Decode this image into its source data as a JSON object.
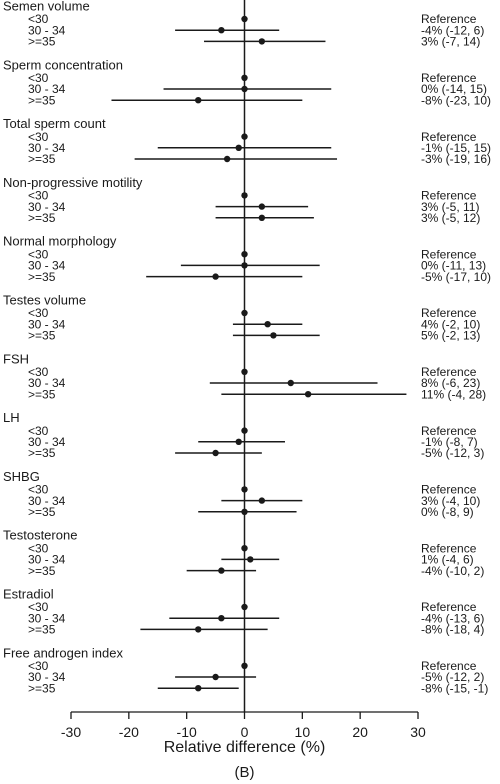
{
  "chart_data": {
    "type": "forest",
    "panel_label": "(B)",
    "xlabel": "Relative difference (%)",
    "xlim": [
      -30,
      30
    ],
    "xticks": [
      "-30",
      "-20",
      "-10",
      "0",
      "10",
      "20",
      "30"
    ],
    "groups": [
      {
        "title": "Semen volume",
        "rows": [
          {
            "label": "<30",
            "est": 0,
            "lo": null,
            "hi": null,
            "text": "Reference"
          },
          {
            "label": "30 - 34",
            "est": -4,
            "lo": -12,
            "hi": 6,
            "text": "-4% (-12, 6)"
          },
          {
            "label": ">=35",
            "est": 3,
            "lo": -7,
            "hi": 14,
            "text": "3% (-7, 14)"
          }
        ]
      },
      {
        "title": "Sperm concentration",
        "rows": [
          {
            "label": "<30",
            "est": 0,
            "lo": null,
            "hi": null,
            "text": "Reference"
          },
          {
            "label": "30 - 34",
            "est": 0,
            "lo": -14,
            "hi": 15,
            "text": "0% (-14, 15)"
          },
          {
            "label": ">=35",
            "est": -8,
            "lo": -23,
            "hi": 10,
            "text": "-8% (-23, 10)"
          }
        ]
      },
      {
        "title": "Total sperm count",
        "rows": [
          {
            "label": "<30",
            "est": 0,
            "lo": null,
            "hi": null,
            "text": "Reference"
          },
          {
            "label": "30 - 34",
            "est": -1,
            "lo": -15,
            "hi": 15,
            "text": "-1% (-15, 15)"
          },
          {
            "label": ">=35",
            "est": -3,
            "lo": -19,
            "hi": 16,
            "text": "-3% (-19, 16)"
          }
        ]
      },
      {
        "title": "Non-progressive motility",
        "rows": [
          {
            "label": "<30",
            "est": 0,
            "lo": null,
            "hi": null,
            "text": "Reference"
          },
          {
            "label": "30 - 34",
            "est": 3,
            "lo": -5,
            "hi": 11,
            "text": "3% (-5, 11)"
          },
          {
            "label": ">=35",
            "est": 3,
            "lo": -5,
            "hi": 12,
            "text": "3% (-5, 12)"
          }
        ]
      },
      {
        "title": "Normal morphology",
        "rows": [
          {
            "label": "<30",
            "est": 0,
            "lo": null,
            "hi": null,
            "text": "Reference"
          },
          {
            "label": "30 - 34",
            "est": 0,
            "lo": -11,
            "hi": 13,
            "text": "0% (-11, 13)"
          },
          {
            "label": ">=35",
            "est": -5,
            "lo": -17,
            "hi": 10,
            "text": "-5% (-17, 10)"
          }
        ]
      },
      {
        "title": "Testes volume",
        "rows": [
          {
            "label": "<30",
            "est": 0,
            "lo": null,
            "hi": null,
            "text": "Reference"
          },
          {
            "label": "30 - 34",
            "est": 4,
            "lo": -2,
            "hi": 10,
            "text": "4% (-2, 10)"
          },
          {
            "label": ">=35",
            "est": 5,
            "lo": -2,
            "hi": 13,
            "text": "5% (-2, 13)"
          }
        ]
      },
      {
        "title": "FSH",
        "rows": [
          {
            "label": "<30",
            "est": 0,
            "lo": null,
            "hi": null,
            "text": "Reference"
          },
          {
            "label": "30 - 34",
            "est": 8,
            "lo": -6,
            "hi": 23,
            "text": "8% (-6, 23)"
          },
          {
            "label": ">=35",
            "est": 11,
            "lo": -4,
            "hi": 28,
            "text": "11% (-4, 28)"
          }
        ]
      },
      {
        "title": "LH",
        "rows": [
          {
            "label": "<30",
            "est": 0,
            "lo": null,
            "hi": null,
            "text": "Reference"
          },
          {
            "label": "30 - 34",
            "est": -1,
            "lo": -8,
            "hi": 7,
            "text": "-1% (-8, 7)"
          },
          {
            "label": ">=35",
            "est": -5,
            "lo": -12,
            "hi": 3,
            "text": "-5% (-12, 3)"
          }
        ]
      },
      {
        "title": "SHBG",
        "rows": [
          {
            "label": "<30",
            "est": 0,
            "lo": null,
            "hi": null,
            "text": "Reference"
          },
          {
            "label": "30 - 34",
            "est": 3,
            "lo": -4,
            "hi": 10,
            "text": "3% (-4, 10)"
          },
          {
            "label": ">=35",
            "est": 0,
            "lo": -8,
            "hi": 9,
            "text": "0% (-8, 9)"
          }
        ]
      },
      {
        "title": "Testosterone",
        "rows": [
          {
            "label": "<30",
            "est": 0,
            "lo": null,
            "hi": null,
            "text": "Reference"
          },
          {
            "label": "30 - 34",
            "est": 1,
            "lo": -4,
            "hi": 6,
            "text": "1% (-4, 6)"
          },
          {
            "label": ">=35",
            "est": -4,
            "lo": -10,
            "hi": 2,
            "text": "-4% (-10, 2)"
          }
        ]
      },
      {
        "title": "Estradiol",
        "rows": [
          {
            "label": "<30",
            "est": 0,
            "lo": null,
            "hi": null,
            "text": "Reference"
          },
          {
            "label": "30 - 34",
            "est": -4,
            "lo": -13,
            "hi": 6,
            "text": "-4% (-13, 6)"
          },
          {
            "label": ">=35",
            "est": -8,
            "lo": -18,
            "hi": 4,
            "text": "-8% (-18, 4)"
          }
        ]
      },
      {
        "title": "Free androgen index",
        "rows": [
          {
            "label": "<30",
            "est": 0,
            "lo": null,
            "hi": null,
            "text": "Reference"
          },
          {
            "label": "30 - 34",
            "est": -5,
            "lo": -12,
            "hi": 2,
            "text": "-5% (-12, 2)"
          },
          {
            "label": ">=35",
            "est": -8,
            "lo": -15,
            "hi": -1,
            "text": "-8% (-15, -1)"
          }
        ]
      }
    ]
  }
}
